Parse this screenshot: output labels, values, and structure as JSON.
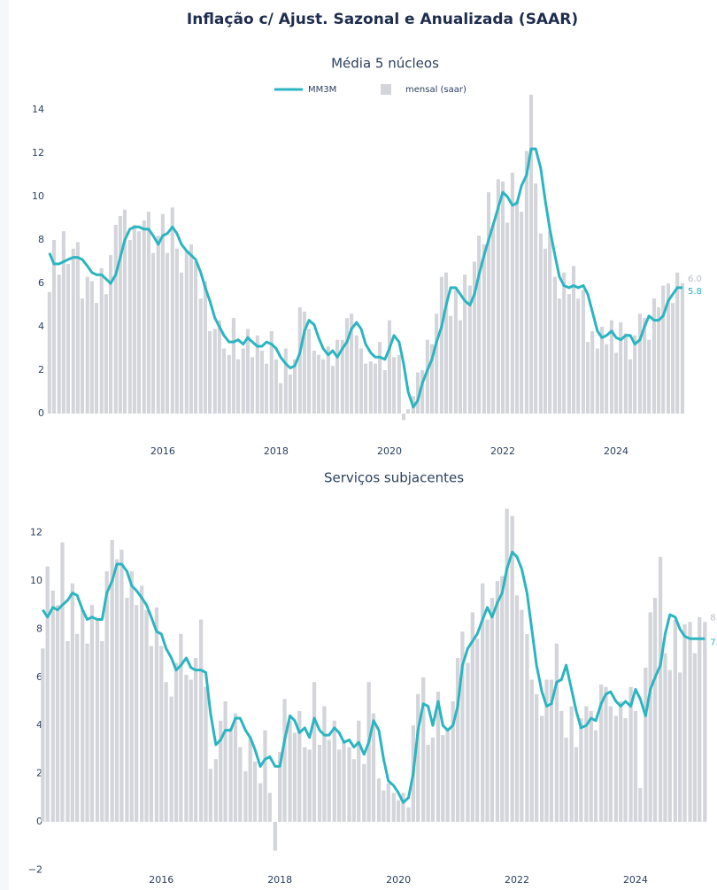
{
  "title": "Inflação c/ Ajust. Sazonal e Anualizada (SAAR)",
  "chart_data": [
    {
      "type": "bar_line",
      "title": "Média 5 núcleos",
      "legend": true,
      "x": [
        2014,
        2014.08,
        2014.17,
        2014.25,
        2014.33,
        2014.42,
        2014.5,
        2014.58,
        2014.67,
        2014.75,
        2014.83,
        2014.92,
        2015,
        2015.08,
        2015.17,
        2015.25,
        2015.33,
        2015.42,
        2015.5,
        2015.58,
        2015.67,
        2015.75,
        2015.83,
        2015.92,
        2016,
        2016.08,
        2016.17,
        2016.25,
        2016.33,
        2016.42,
        2016.5,
        2016.58,
        2016.67,
        2016.75,
        2016.83,
        2016.92,
        2017,
        2017.08,
        2017.17,
        2017.25,
        2017.33,
        2017.42,
        2017.5,
        2017.58,
        2017.67,
        2017.75,
        2017.83,
        2017.92,
        2018,
        2018.08,
        2018.17,
        2018.25,
        2018.33,
        2018.42,
        2018.5,
        2018.58,
        2018.67,
        2018.75,
        2018.83,
        2018.92,
        2019,
        2019.08,
        2019.17,
        2019.25,
        2019.33,
        2019.42,
        2019.5,
        2019.58,
        2019.67,
        2019.75,
        2019.83,
        2019.92,
        2020,
        2020.08,
        2020.17,
        2020.25,
        2020.33,
        2020.42,
        2020.5,
        2020.58,
        2020.67,
        2020.75,
        2020.83,
        2020.92,
        2021,
        2021.08,
        2021.17,
        2021.25,
        2021.33,
        2021.42,
        2021.5,
        2021.58,
        2021.67,
        2021.75,
        2021.83,
        2021.92,
        2022,
        2022.08,
        2022.17,
        2022.25,
        2022.33,
        2022.42,
        2022.5,
        2022.58,
        2022.67,
        2022.75,
        2022.83,
        2022.92,
        2023,
        2023.08,
        2023.17,
        2023.25,
        2023.33,
        2023.42,
        2023.5,
        2023.58,
        2023.67,
        2023.75,
        2023.83,
        2023.92,
        2024,
        2024.08,
        2024.17,
        2024.25,
        2024.33,
        2024.42,
        2024.5,
        2024.58,
        2024.67,
        2024.75,
        2024.83,
        2024.92,
        2025,
        2025.08,
        2025.17
      ],
      "series": [
        {
          "name": "mensal (saar)",
          "kind": "bar",
          "color": "#d3d5da",
          "values": [
            5.6,
            8.0,
            6.4,
            8.4,
            6.9,
            7.6,
            7.9,
            5.3,
            6.3,
            6.1,
            5.1,
            6.7,
            5.5,
            7.3,
            8.7,
            9.1,
            9.4,
            8.0,
            8.7,
            8.4,
            8.9,
            9.3,
            7.4,
            8.2,
            9.2,
            7.4,
            9.5,
            7.6,
            6.5,
            7.5,
            7.8,
            7.0,
            5.3,
            6.1,
            3.8,
            3.9,
            4.3,
            3.0,
            2.7,
            4.4,
            2.5,
            3.0,
            3.9,
            2.6,
            3.6,
            2.9,
            2.3,
            3.8,
            2.5,
            1.4,
            3.0,
            1.8,
            2.5,
            4.9,
            4.7,
            3.9,
            2.9,
            2.7,
            2.5,
            3.1,
            2.2,
            3.4,
            3.4,
            4.4,
            4.6,
            3.6,
            3.0,
            2.3,
            2.4,
            2.3,
            3.3,
            2.0,
            4.3,
            2.6,
            2.7,
            -0.3,
            0.2,
            0.8,
            1.9,
            2.0,
            3.4,
            3.2,
            4.6,
            6.3,
            6.5,
            4.5,
            5.7,
            4.3,
            6.4,
            5.9,
            7.0,
            8.2,
            7.8,
            10.2,
            8.7,
            10.8,
            10.7,
            8.8,
            11.1,
            9.8,
            9.3,
            12.1,
            14.7,
            10.6,
            8.3,
            7.6,
            8.4,
            6.3,
            5.3,
            6.5,
            5.5,
            6.8,
            5.3,
            5.7,
            3.3,
            3.8,
            3.0,
            4.0,
            3.2,
            4.3,
            2.8,
            4.2,
            3.7,
            2.5,
            3.6,
            4.6,
            4.4,
            3.4,
            5.3,
            4.9,
            5.9,
            6.0,
            5.1,
            6.5,
            6.0
          ],
          "value_labels": [
            null,
            null,
            null,
            null,
            null,
            null,
            null,
            null,
            null,
            null,
            null,
            null,
            null,
            null,
            null,
            null,
            null,
            null,
            null,
            null,
            null,
            null,
            null,
            null,
            null,
            null,
            null,
            null,
            null,
            null,
            null,
            null,
            null,
            null,
            null,
            null,
            null,
            null,
            null,
            null,
            null,
            null,
            null,
            null,
            null,
            null,
            null,
            null,
            null,
            null,
            null,
            null,
            null,
            null,
            null,
            null,
            null,
            null,
            null,
            null,
            null,
            null,
            null,
            null,
            null,
            null,
            null,
            null,
            null,
            null,
            null,
            null,
            null,
            null,
            null,
            null,
            null,
            null,
            null,
            null,
            null,
            null,
            null,
            null,
            null,
            null,
            null,
            null,
            null,
            null,
            null,
            null,
            null,
            null,
            null,
            null,
            null,
            null,
            null,
            null,
            null,
            null,
            null,
            null,
            null,
            null,
            null,
            null,
            null,
            null,
            null,
            null,
            null,
            null,
            null,
            null,
            null,
            null,
            null,
            null,
            null,
            null,
            null,
            null,
            null,
            null,
            null,
            null,
            null,
            null,
            null,
            null,
            null,
            null,
            "6.0"
          ]
        },
        {
          "name": "MM3M",
          "kind": "line",
          "color": "#2bb5c0",
          "values": [
            7.4,
            6.9,
            6.9,
            7.0,
            7.1,
            7.2,
            7.2,
            7.1,
            6.8,
            6.5,
            6.4,
            6.4,
            6.2,
            6.0,
            6.4,
            7.2,
            8.0,
            8.5,
            8.6,
            8.6,
            8.5,
            8.5,
            8.2,
            7.8,
            8.2,
            8.3,
            8.6,
            8.3,
            7.8,
            7.5,
            7.3,
            7.1,
            6.5,
            5.8,
            5.2,
            4.4,
            4.0,
            3.6,
            3.3,
            3.3,
            3.4,
            3.2,
            3.5,
            3.3,
            3.1,
            3.1,
            3.3,
            3.2,
            3.0,
            2.6,
            2.3,
            2.1,
            2.2,
            2.8,
            3.8,
            4.3,
            4.1,
            3.5,
            3.0,
            2.7,
            2.9,
            2.6,
            3.0,
            3.3,
            3.9,
            4.2,
            3.9,
            3.2,
            2.8,
            2.6,
            2.6,
            2.5,
            3.0,
            3.6,
            3.3,
            2.3,
            1.0,
            0.3,
            0.6,
            1.4,
            2.0,
            2.5,
            3.3,
            4.0,
            5.0,
            5.8,
            5.8,
            5.5,
            5.2,
            5.0,
            5.5,
            6.4,
            7.3,
            8.0,
            8.7,
            9.5,
            10.2,
            10.0,
            9.6,
            9.7,
            10.5,
            11.0,
            12.2,
            12.2,
            11.3,
            9.8,
            8.5,
            7.3,
            6.3,
            5.9,
            5.8,
            5.9,
            5.8,
            5.9,
            5.5,
            4.7,
            3.8,
            3.5,
            3.6,
            3.8,
            3.5,
            3.4,
            3.6,
            3.6,
            3.2,
            3.4,
            4.0,
            4.5,
            4.3,
            4.3,
            4.5,
            5.2,
            5.5,
            5.8,
            5.8
          ]
        }
      ],
      "xlim": [
        2013.94,
        2025.28
      ],
      "xticks": [
        2016,
        2018,
        2020,
        2022,
        2024
      ],
      "ylim": [
        -0.4,
        15
      ],
      "yticks": [
        0,
        2,
        4,
        6,
        8,
        10,
        12,
        14
      ]
    },
    {
      "type": "bar_line",
      "title": "Serviços subjacentes",
      "legend": false,
      "x": [
        2014,
        2014.08,
        2014.17,
        2014.25,
        2014.33,
        2014.42,
        2014.5,
        2014.58,
        2014.67,
        2014.75,
        2014.83,
        2014.92,
        2015,
        2015.08,
        2015.17,
        2015.25,
        2015.33,
        2015.42,
        2015.5,
        2015.58,
        2015.67,
        2015.75,
        2015.83,
        2015.92,
        2016,
        2016.08,
        2016.17,
        2016.25,
        2016.33,
        2016.42,
        2016.5,
        2016.58,
        2016.67,
        2016.75,
        2016.83,
        2016.92,
        2017,
        2017.08,
        2017.17,
        2017.25,
        2017.33,
        2017.42,
        2017.5,
        2017.58,
        2017.67,
        2017.75,
        2017.83,
        2017.92,
        2018,
        2018.08,
        2018.17,
        2018.25,
        2018.33,
        2018.42,
        2018.5,
        2018.58,
        2018.67,
        2018.75,
        2018.83,
        2018.92,
        2019,
        2019.08,
        2019.17,
        2019.25,
        2019.33,
        2019.42,
        2019.5,
        2019.58,
        2019.67,
        2019.75,
        2019.83,
        2019.92,
        2020,
        2020.08,
        2020.17,
        2020.25,
        2020.33,
        2020.42,
        2020.5,
        2020.58,
        2020.67,
        2020.75,
        2020.83,
        2020.92,
        2021,
        2021.08,
        2021.17,
        2021.25,
        2021.33,
        2021.42,
        2021.5,
        2021.58,
        2021.67,
        2021.75,
        2021.83,
        2021.92,
        2022,
        2022.08,
        2022.17,
        2022.25,
        2022.33,
        2022.42,
        2022.5,
        2022.58,
        2022.67,
        2022.75,
        2022.83,
        2022.92,
        2023,
        2023.08,
        2023.17,
        2023.25,
        2023.33,
        2023.42,
        2023.5,
        2023.58,
        2023.67,
        2023.75,
        2023.83,
        2023.92,
        2024,
        2024.08,
        2024.17,
        2024.25,
        2024.33,
        2024.42,
        2024.5,
        2024.58,
        2024.67,
        2024.75,
        2024.83,
        2024.92,
        2025,
        2025.08,
        2025.17
      ],
      "series": [
        {
          "name": "mensal (saar)",
          "kind": "bar",
          "color": "#d3d5da",
          "values": [
            7.2,
            10.6,
            9.6,
            9.0,
            11.6,
            7.5,
            9.9,
            7.8,
            8.8,
            7.4,
            9.0,
            8.4,
            7.5,
            10.4,
            11.7,
            10.9,
            11.3,
            9.3,
            10.4,
            9.0,
            9.8,
            8.8,
            7.3,
            8.9,
            7.3,
            5.8,
            5.2,
            6.6,
            7.8,
            6.1,
            5.9,
            6.8,
            8.4,
            5.6,
            2.2,
            2.6,
            4.2,
            5.0,
            3.9,
            4.5,
            3.1,
            2.1,
            3.5,
            2.5,
            1.6,
            3.8,
            1.2,
            -1.2,
            2.9,
            5.1,
            4.2,
            3.7,
            4.6,
            3.1,
            3.0,
            5.8,
            3.2,
            4.8,
            3.4,
            4.2,
            3.0,
            3.4,
            3.1,
            2.6,
            4.2,
            2.4,
            5.8,
            4.5,
            1.8,
            1.3,
            1.6,
            1.2,
            0.9,
            1.2,
            0.6,
            4.0,
            5.3,
            6.0,
            3.2,
            3.5,
            5.4,
            3.6,
            3.9,
            5.0,
            6.8,
            7.9,
            6.6,
            8.7,
            7.6,
            9.9,
            8.4,
            9.3,
            10.0,
            10.2,
            13.0,
            12.7,
            9.4,
            8.8,
            7.8,
            5.9,
            5.3,
            4.4,
            5.9,
            5.9,
            7.4,
            4.6,
            3.5,
            4.8,
            3.1,
            4.3,
            4.8,
            4.6,
            3.8,
            5.7,
            5.6,
            4.8,
            4.4,
            5.0,
            4.3,
            5.6,
            4.6,
            1.4,
            6.4,
            8.7,
            9.3,
            11.0,
            7.0,
            6.3,
            8.4,
            6.2,
            8.2,
            8.3,
            7.0,
            8.5,
            8.3
          ]
        },
        {
          "name": "MM3M",
          "kind": "line",
          "color": "#2bb5c0",
          "values": [
            8.8,
            8.5,
            8.9,
            8.8,
            9.0,
            9.2,
            9.5,
            9.4,
            8.8,
            8.4,
            8.5,
            8.4,
            8.4,
            9.5,
            10.0,
            10.7,
            10.7,
            10.4,
            9.8,
            9.6,
            9.3,
            9.0,
            8.5,
            7.9,
            7.8,
            7.2,
            6.8,
            6.3,
            6.5,
            6.8,
            6.4,
            6.3,
            6.3,
            6.2,
            4.5,
            3.2,
            3.4,
            3.8,
            3.8,
            4.3,
            4.3,
            3.8,
            3.5,
            3.0,
            2.3,
            2.6,
            2.7,
            2.3,
            2.3,
            3.4,
            4.4,
            4.2,
            3.7,
            3.9,
            3.5,
            4.3,
            3.8,
            3.6,
            3.6,
            3.9,
            3.7,
            3.3,
            3.4,
            3.1,
            3.3,
            2.8,
            3.3,
            4.2,
            3.8,
            2.6,
            1.7,
            1.5,
            1.2,
            0.8,
            1.0,
            2.0,
            3.8,
            4.9,
            4.8,
            4.0,
            5.0,
            4.0,
            3.8,
            4.0,
            4.8,
            6.5,
            7.2,
            7.5,
            7.8,
            8.4,
            8.9,
            8.5,
            9.1,
            9.5,
            10.5,
            11.2,
            11.0,
            10.5,
            9.5,
            8.0,
            6.5,
            5.4,
            4.8,
            4.9,
            5.8,
            5.9,
            6.5,
            5.5,
            4.6,
            3.9,
            4.0,
            4.3,
            4.2,
            4.9,
            5.3,
            5.4,
            5.0,
            4.8,
            5.0,
            4.8,
            5.5,
            5.1,
            4.4,
            5.5,
            6.0,
            6.5,
            7.8,
            8.6,
            8.5,
            8.0,
            7.7,
            7.6,
            7.6,
            7.6,
            7.6
          ]
        }
      ],
      "xlim": [
        2013.95,
        2025.3
      ],
      "xticks": [
        2016,
        2018,
        2020,
        2022,
        2024
      ],
      "ylim": [
        -2.2,
        13.2
      ],
      "yticks": [
        {
          "value": -2,
          "label": "−2"
        },
        0,
        2,
        4,
        6,
        8,
        10,
        12
      ]
    }
  ]
}
